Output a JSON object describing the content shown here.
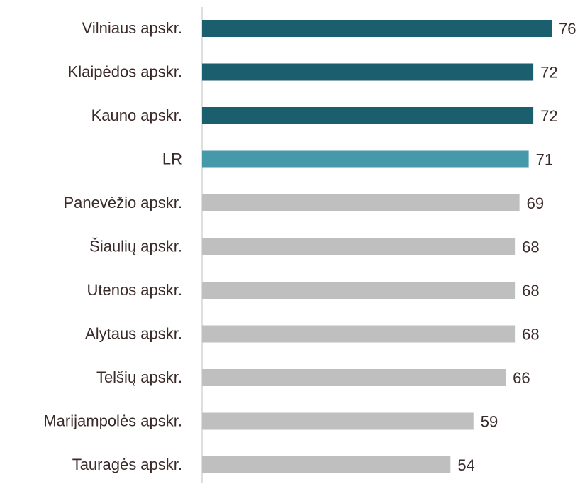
{
  "chart_data": {
    "type": "hbar",
    "categories": [
      "Vilniaus apskr.",
      "Klaipėdos apskr.",
      "Kauno apskr.",
      "LR",
      "Panevėžio apskr.",
      "Šiaulių apskr.",
      "Utenos apskr.",
      "Alytaus apskr.",
      "Telšių apskr.",
      "Marijampolės apskr.",
      "Tauragės apskr."
    ],
    "values": [
      76,
      72,
      72,
      71,
      69,
      68,
      68,
      68,
      66,
      59,
      54
    ],
    "colors": [
      "#1b5e6e",
      "#1b5e6e",
      "#1b5e6e",
      "#4699a8",
      "#bfbfbf",
      "#bfbfbf",
      "#bfbfbf",
      "#bfbfbf",
      "#bfbfbf",
      "#bfbfbf",
      "#bfbfbf"
    ],
    "xlim": [
      0,
      80
    ]
  }
}
